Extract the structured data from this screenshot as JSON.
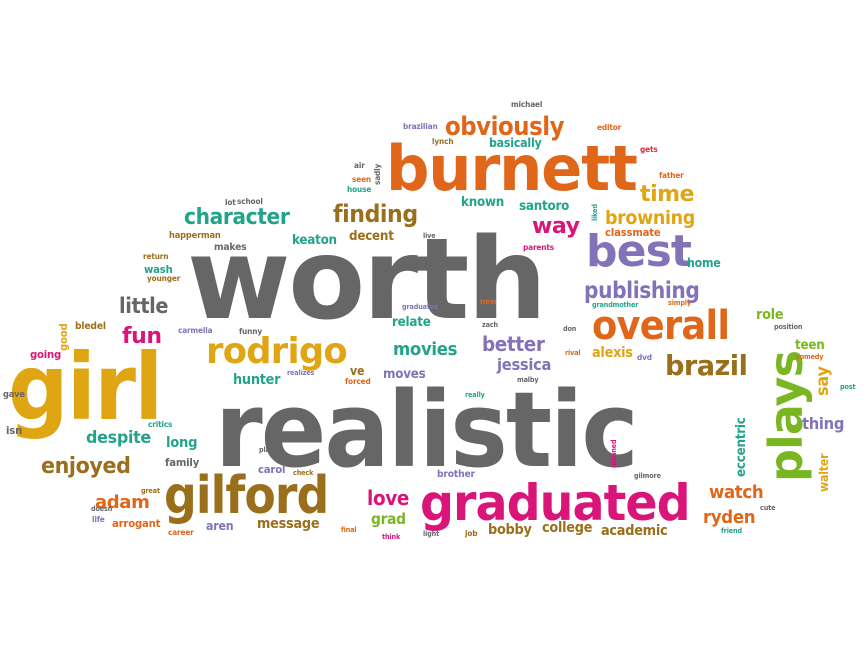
{
  "palette": {
    "gray": "#666666",
    "orange": "#e0661a",
    "gold": "#e0a512",
    "brown": "#9a6f1c",
    "green": "#7ab622",
    "pink": "#d9157a",
    "purple": "#8272b8",
    "teal": "#23a38a",
    "blue": "#4e6fb0",
    "red": "#d62d33"
  },
  "words": [
    {
      "text": "worth",
      "color": "gray"
    },
    {
      "text": "realistic",
      "color": "gray"
    },
    {
      "text": "girl",
      "color": "gold"
    },
    {
      "text": "burnett",
      "color": "orange"
    },
    {
      "text": "graduated",
      "color": "pink"
    },
    {
      "text": "gilford",
      "color": "brown"
    },
    {
      "text": "plays",
      "color": "green"
    },
    {
      "text": "best",
      "color": "purple"
    },
    {
      "text": "overall",
      "color": "orange"
    },
    {
      "text": "rodrigo",
      "color": "gold"
    },
    {
      "text": "obviously",
      "color": "orange"
    },
    {
      "text": "brazil",
      "color": "brown"
    },
    {
      "text": "character",
      "color": "teal"
    },
    {
      "text": "finding",
      "color": "brown"
    },
    {
      "text": "publishing",
      "color": "purple"
    },
    {
      "text": "time",
      "color": "gold"
    },
    {
      "text": "browning",
      "color": "gold"
    },
    {
      "text": "way",
      "color": "pink"
    },
    {
      "text": "enjoyed",
      "color": "brown"
    },
    {
      "text": "fun",
      "color": "pink"
    },
    {
      "text": "little",
      "color": "gray"
    },
    {
      "text": "movies",
      "color": "teal"
    },
    {
      "text": "better",
      "color": "purple"
    },
    {
      "text": "jessica",
      "color": "purple"
    },
    {
      "text": "despite",
      "color": "teal"
    },
    {
      "text": "adam",
      "color": "orange"
    },
    {
      "text": "love",
      "color": "pink"
    },
    {
      "text": "watch",
      "color": "orange"
    },
    {
      "text": "ryden",
      "color": "orange"
    },
    {
      "text": "message",
      "color": "brown"
    },
    {
      "text": "grad",
      "color": "green"
    },
    {
      "text": "bobby",
      "color": "brown"
    },
    {
      "text": "college",
      "color": "brown"
    },
    {
      "text": "academic",
      "color": "brown"
    },
    {
      "text": "thing",
      "color": "purple"
    },
    {
      "text": "say",
      "color": "gold"
    },
    {
      "text": "walter",
      "color": "gold"
    },
    {
      "text": "eccentric",
      "color": "teal"
    },
    {
      "text": "teen",
      "color": "green"
    },
    {
      "text": "role",
      "color": "green"
    },
    {
      "text": "alexis",
      "color": "gold"
    },
    {
      "text": "hunter",
      "color": "teal"
    },
    {
      "text": "long",
      "color": "teal"
    },
    {
      "text": "moves",
      "color": "purple"
    },
    {
      "text": "ve",
      "color": "brown"
    },
    {
      "text": "relate",
      "color": "teal"
    },
    {
      "text": "known",
      "color": "teal"
    },
    {
      "text": "santoro",
      "color": "teal"
    },
    {
      "text": "basically",
      "color": "teal"
    },
    {
      "text": "keaton",
      "color": "teal"
    },
    {
      "text": "decent",
      "color": "brown"
    },
    {
      "text": "classmate",
      "color": "orange"
    },
    {
      "text": "home",
      "color": "teal"
    },
    {
      "text": "aren",
      "color": "purple"
    },
    {
      "text": "carol",
      "color": "purple"
    },
    {
      "text": "family",
      "color": "gray"
    },
    {
      "text": "arrogant",
      "color": "orange"
    },
    {
      "text": "good",
      "color": "gold"
    },
    {
      "text": "going",
      "color": "pink"
    },
    {
      "text": "isn",
      "color": "gray"
    },
    {
      "text": "gave",
      "color": "gray"
    },
    {
      "text": "bledel",
      "color": "brown"
    },
    {
      "text": "wash",
      "color": "teal"
    },
    {
      "text": "makes",
      "color": "gray"
    },
    {
      "text": "happerman",
      "color": "brown"
    },
    {
      "text": "return",
      "color": "brown"
    },
    {
      "text": "younger",
      "color": "brown"
    },
    {
      "text": "lot",
      "color": "gray"
    },
    {
      "text": "school",
      "color": "gray"
    },
    {
      "text": "carmella",
      "color": "purple"
    },
    {
      "text": "funny",
      "color": "gray"
    },
    {
      "text": "critics",
      "color": "teal"
    },
    {
      "text": "great",
      "color": "brown"
    },
    {
      "text": "life",
      "color": "purple"
    },
    {
      "text": "doesn",
      "color": "gray"
    },
    {
      "text": "career",
      "color": "orange"
    },
    {
      "text": "final",
      "color": "orange"
    },
    {
      "text": "think",
      "color": "pink"
    },
    {
      "text": "light",
      "color": "gray"
    },
    {
      "text": "job",
      "color": "brown"
    },
    {
      "text": "plan",
      "color": "gray"
    },
    {
      "text": "check",
      "color": "brown"
    },
    {
      "text": "forced",
      "color": "orange"
    },
    {
      "text": "realizes",
      "color": "purple"
    },
    {
      "text": "really",
      "color": "teal"
    },
    {
      "text": "malby",
      "color": "gray"
    },
    {
      "text": "rival",
      "color": "orange"
    },
    {
      "text": "dvd",
      "color": "purple"
    },
    {
      "text": "don",
      "color": "gray"
    },
    {
      "text": "zach",
      "color": "gray"
    },
    {
      "text": "new",
      "color": "orange"
    },
    {
      "text": "graduates",
      "color": "purple"
    },
    {
      "text": "grandmother",
      "color": "teal"
    },
    {
      "text": "simply",
      "color": "orange"
    },
    {
      "text": "position",
      "color": "gray"
    },
    {
      "text": "comedy",
      "color": "orange"
    },
    {
      "text": "post",
      "color": "teal"
    },
    {
      "text": "cute",
      "color": "gray"
    },
    {
      "text": "friend",
      "color": "teal"
    },
    {
      "text": "gilmore",
      "color": "gray"
    },
    {
      "text": "planned",
      "color": "pink"
    },
    {
      "text": "brother",
      "color": "purple"
    },
    {
      "text": "parents",
      "color": "pink"
    },
    {
      "text": "live",
      "color": "gray"
    },
    {
      "text": "liked",
      "color": "teal"
    },
    {
      "text": "father",
      "color": "orange"
    },
    {
      "text": "gets",
      "color": "red"
    },
    {
      "text": "editor",
      "color": "orange"
    },
    {
      "text": "michael",
      "color": "gray"
    },
    {
      "text": "brazilian",
      "color": "purple"
    },
    {
      "text": "lynch",
      "color": "brown"
    },
    {
      "text": "seen",
      "color": "orange"
    },
    {
      "text": "air",
      "color": "gray"
    },
    {
      "text": "sadly",
      "color": "gray"
    },
    {
      "text": "house",
      "color": "teal"
    }
  ]
}
